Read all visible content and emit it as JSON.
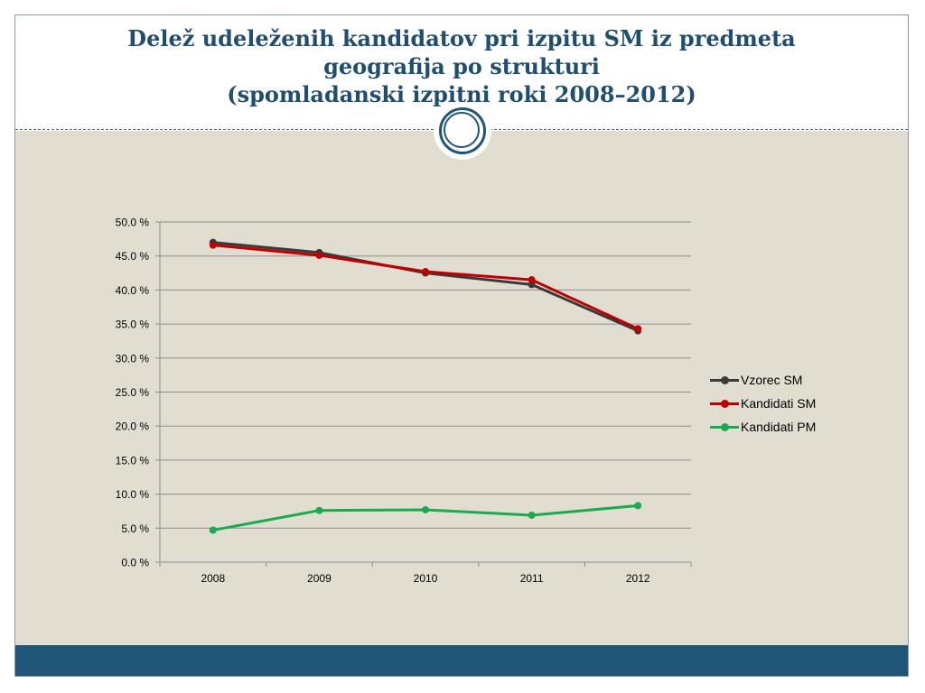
{
  "slide": {
    "title_lines": [
      "Delež udeleženih kandidatov pri izpitu SM iz predmeta",
      "geografija po strukturi",
      "(spomladanski izpitni roki 2008–2012)"
    ],
    "colors": {
      "title": "#1f4e6e",
      "content_bg": "#e1ddd1",
      "footer_bar": "#1f5677"
    }
  },
  "chart_data": {
    "type": "line",
    "categories": [
      "2008",
      "2009",
      "2010",
      "2011",
      "2012"
    ],
    "ylim": [
      0,
      50
    ],
    "yticks": [
      0,
      5,
      10,
      15,
      20,
      25,
      30,
      35,
      40,
      45,
      50
    ],
    "ytick_labels": [
      "0.0 %",
      "5.0 %",
      "10.0 %",
      "15.0 %",
      "20.0 %",
      "25.0 %",
      "30.0 %",
      "35.0 %",
      "40.0 %",
      "45.0 %",
      "50.0 %"
    ],
    "grid": true,
    "legend_position": "right",
    "series": [
      {
        "name": "Vzorec SM",
        "color": "#3a3a3a",
        "values": [
          47.0,
          45.5,
          42.5,
          40.8,
          34.0
        ]
      },
      {
        "name": "Kandidati SM",
        "color": "#c00000",
        "values": [
          46.6,
          45.1,
          42.7,
          41.5,
          34.3
        ]
      },
      {
        "name": "Kandidati PM",
        "color": "#1aaa50",
        "values": [
          4.7,
          7.6,
          7.7,
          6.9,
          8.3
        ]
      }
    ]
  }
}
